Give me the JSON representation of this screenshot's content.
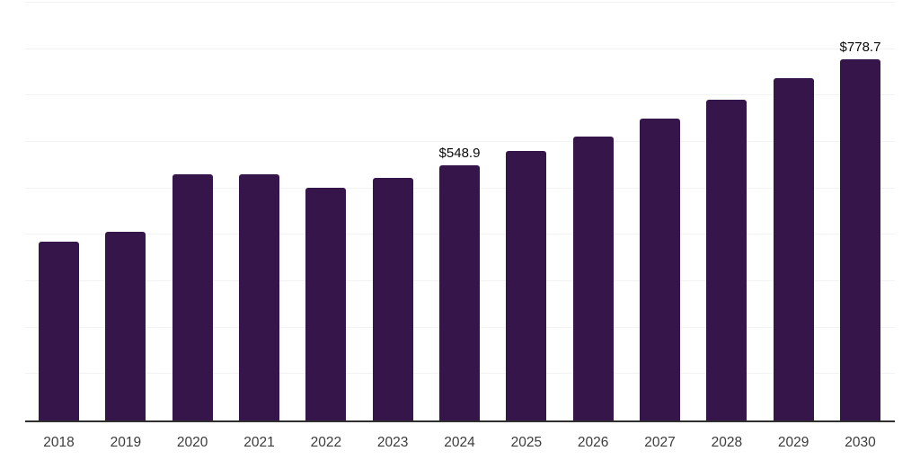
{
  "chart_data": {
    "type": "bar",
    "title": "",
    "xlabel": "",
    "ylabel": "",
    "categories": [
      "2018",
      "2019",
      "2020",
      "2021",
      "2022",
      "2023",
      "2024",
      "2025",
      "2026",
      "2027",
      "2028",
      "2029",
      "2030"
    ],
    "values": [
      386.0,
      407.3,
      530.3,
      530.0,
      501.0,
      523.1,
      548.9,
      580.1,
      612.3,
      650.0,
      691.3,
      737.3,
      778.7
    ],
    "data_labels": [
      {
        "category": "2024",
        "text": "$548.9"
      },
      {
        "category": "2030",
        "text": "$778.7"
      }
    ],
    "ylim": [
      0,
      900
    ],
    "gridline_interval": 100,
    "grid": "horizontal",
    "y_tick_labels_visible": false,
    "legend": "none",
    "colors": {
      "bar": "#36154B",
      "gridline": "#F3F3F3",
      "axis_line": "#2F2F2F",
      "x_tick_label": "#3C3C3C",
      "data_label": "#0A0A0A",
      "background": "#FFFFFF"
    }
  }
}
